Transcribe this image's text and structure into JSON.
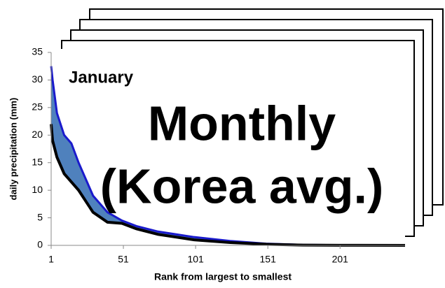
{
  "chart_data": {
    "type": "area",
    "annotations": [
      "January",
      "Monthly",
      "(Korea avg.)"
    ],
    "xlabel": "Rank from largest to smallest",
    "ylabel": "daily precipitation (mm)",
    "x": [
      1,
      2,
      5,
      10,
      15,
      20,
      25,
      30,
      40,
      50,
      60,
      75,
      100,
      125,
      150,
      175,
      200,
      246
    ],
    "upper": [
      32.5,
      30,
      24,
      20,
      18.5,
      15,
      12,
      9,
      6,
      4.5,
      3.5,
      2.5,
      1.5,
      0.8,
      0.3,
      0.1,
      0.05,
      0
    ],
    "lower": [
      22,
      19,
      16,
      13,
      11.5,
      10,
      8,
      6,
      4.2,
      4,
      3,
      2,
      1.0,
      0.5,
      0.2,
      0.05,
      0.02,
      0
    ],
    "fill_color": "#4f81bd",
    "upper_color": "#1a1acc",
    "lower_color": "#000000",
    "xlim": [
      1,
      246
    ],
    "ylim": [
      0,
      35
    ],
    "xticks": [
      1,
      51,
      101,
      151,
      201
    ],
    "yticks": [
      0,
      5,
      10,
      15,
      20,
      25,
      30,
      35
    ]
  }
}
